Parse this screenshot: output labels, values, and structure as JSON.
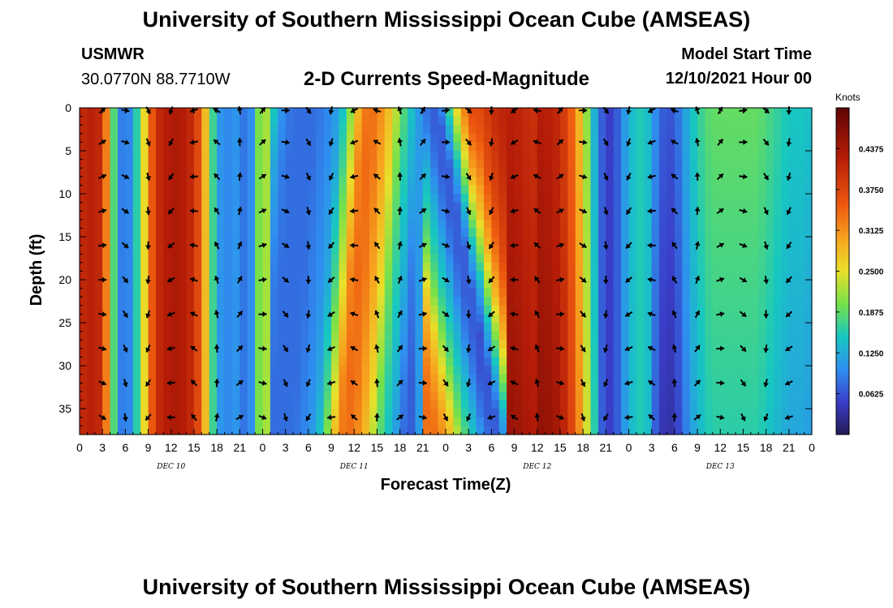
{
  "header": {
    "title": "University of Southern Mississippi Ocean Cube (AMSEAS)",
    "station": "USMWR",
    "coords": "30.0770N  88.7710W",
    "plot_title": "2-D Currents Speed-Magnitude",
    "start_label": "Model Start Time",
    "start_value": "12/10/2021 Hour 00"
  },
  "footer": {
    "title": "University of Southern Mississippi Ocean Cube (AMSEAS)"
  },
  "chart_data": {
    "type": "heatmap",
    "title": "2-D Currents Speed-Magnitude",
    "xlabel": "Forecast Time(Z)",
    "ylabel": "Depth (ft)",
    "x_range_hours": [
      0,
      96
    ],
    "y_range_ft": [
      0,
      38
    ],
    "x_tick_labels": [
      "0",
      "3",
      "6",
      "9",
      "12",
      "15",
      "18",
      "21",
      "0",
      "3",
      "6",
      "9",
      "12",
      "15",
      "18",
      "21",
      "0",
      "3",
      "6",
      "9",
      "12",
      "15",
      "18",
      "21",
      "0",
      "3",
      "6",
      "9",
      "12",
      "15",
      "18",
      "21",
      "0"
    ],
    "y_tick_labels": [
      "0",
      "5",
      "10",
      "15",
      "20",
      "25",
      "30",
      "35"
    ],
    "day_labels": [
      "DEC 10",
      "DEC 11",
      "DEC 12",
      "DEC 13"
    ],
    "colorbar": {
      "unit": "Knots",
      "range": [
        0,
        0.5
      ],
      "ticks": [
        "0.4375",
        "0.3750",
        "0.3125",
        "0.2500",
        "0.1875",
        "0.1250",
        "0.0625"
      ],
      "tick_values": [
        0.4375,
        0.375,
        0.3125,
        0.25,
        0.1875,
        0.125,
        0.0625
      ]
    },
    "vector_depths_ft": [
      0,
      4,
      8,
      12,
      16,
      20,
      24,
      28,
      32,
      36
    ],
    "speed_profile": {
      "hours": [
        0,
        1,
        2,
        3,
        4,
        5,
        6,
        7,
        8,
        9,
        10,
        11,
        12,
        13,
        14,
        15,
        16,
        17,
        18,
        19,
        20,
        21,
        22,
        23,
        24,
        25,
        26,
        27,
        28,
        29,
        30,
        31,
        32,
        33,
        34,
        35,
        36,
        37,
        38,
        39,
        40,
        41,
        42,
        43,
        44,
        45,
        46,
        47,
        48,
        49,
        50,
        51,
        52,
        53,
        54,
        55,
        56,
        57,
        58,
        59,
        60,
        61,
        62,
        63,
        64,
        65,
        66,
        67,
        68,
        69,
        70,
        71,
        72,
        73,
        74,
        75,
        76,
        77,
        78,
        79,
        80,
        81,
        82,
        83,
        84,
        85,
        86,
        87,
        88,
        89,
        90,
        91,
        92,
        93,
        94,
        95,
        96
      ],
      "surface": [
        0.4,
        0.42,
        0.42,
        0.4,
        0.25,
        0.11,
        0.07,
        0.12,
        0.2,
        0.31,
        0.4,
        0.42,
        0.43,
        0.43,
        0.42,
        0.4,
        0.34,
        0.22,
        0.12,
        0.09,
        0.1,
        0.11,
        0.06,
        0.14,
        0.26,
        0.18,
        0.12,
        0.09,
        0.08,
        0.08,
        0.08,
        0.08,
        0.09,
        0.1,
        0.12,
        0.17,
        0.24,
        0.32,
        0.34,
        0.33,
        0.3,
        0.26,
        0.2,
        0.16,
        0.13,
        0.09,
        0.07,
        0.07,
        0.13,
        0.22,
        0.3,
        0.35,
        0.39,
        0.41,
        0.43,
        0.44,
        0.45,
        0.45,
        0.44,
        0.43,
        0.43,
        0.42,
        0.42,
        0.4,
        0.37,
        0.32,
        0.25,
        0.17,
        0.09,
        0.05,
        0.05,
        0.09,
        0.13,
        0.15,
        0.16,
        0.12,
        0.08,
        0.06,
        0.07,
        0.1,
        0.14,
        0.16,
        0.18,
        0.19,
        0.19,
        0.19,
        0.19,
        0.19,
        0.19,
        0.19,
        0.18,
        0.17,
        0.16,
        0.15,
        0.15,
        0.15,
        0.14
      ]
    }
  }
}
